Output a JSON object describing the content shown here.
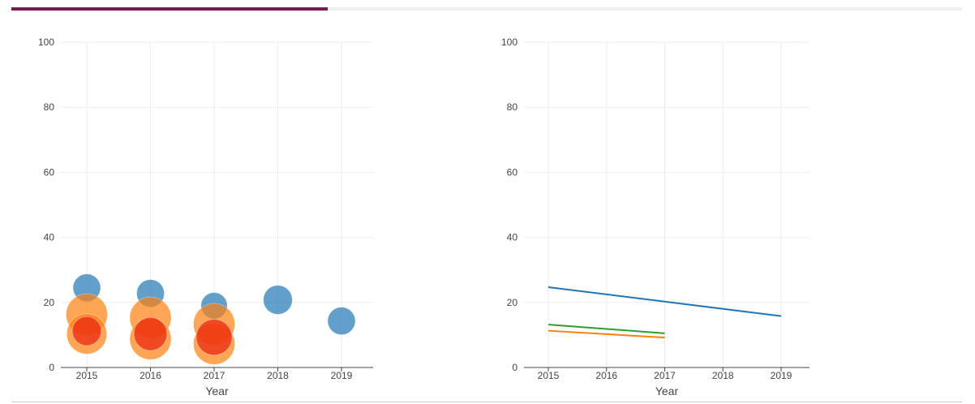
{
  "progress": {
    "fraction": 0.333,
    "color": "#7a1c52"
  },
  "chart_data": [
    {
      "type": "scatter",
      "xlabel": "Year",
      "ylabel": "",
      "ylim": [
        0,
        100
      ],
      "yticks": [
        0,
        20,
        40,
        60,
        80,
        100
      ],
      "x": [
        2015,
        2016,
        2017,
        2018,
        2019
      ],
      "xticks": [
        "2015",
        "2016",
        "2017",
        "2018",
        "2019"
      ],
      "grid": true,
      "series": [
        {
          "color": "#1f77b4",
          "points": [
            {
              "x": 2015,
              "y": 24.5,
              "size": 2.0
            },
            {
              "x": 2016,
              "y": 22.8,
              "size": 2.0
            },
            {
              "x": 2017,
              "y": 19.0,
              "size": 1.9
            },
            {
              "x": 2018,
              "y": 20.8,
              "size": 2.1
            },
            {
              "x": 2019,
              "y": 14.3,
              "size": 2.0
            }
          ]
        },
        {
          "color": "#ff7f0e",
          "points": [
            {
              "x": 2015,
              "y": 16.3,
              "size": 3.0
            },
            {
              "x": 2015,
              "y": 10.3,
              "size": 2.9
            },
            {
              "x": 2016,
              "y": 15.3,
              "size": 3.0
            },
            {
              "x": 2016,
              "y": 8.8,
              "size": 3.0
            },
            {
              "x": 2017,
              "y": 13.3,
              "size": 3.0
            },
            {
              "x": 2017,
              "y": 7.3,
              "size": 3.0
            }
          ]
        },
        {
          "color": "#e8220f",
          "points": [
            {
              "x": 2015,
              "y": 11.2,
              "size": 2.1
            },
            {
              "x": 2016,
              "y": 10.3,
              "size": 2.4
            },
            {
              "x": 2017,
              "y": 9.3,
              "size": 2.6
            }
          ]
        }
      ]
    },
    {
      "type": "line",
      "xlabel": "Year",
      "ylabel": "",
      "ylim": [
        0,
        100
      ],
      "yticks": [
        0,
        20,
        40,
        60,
        80,
        100
      ],
      "x": [
        2015,
        2016,
        2017,
        2018,
        2019
      ],
      "xticks": [
        "2015",
        "2016",
        "2017",
        "2018",
        "2019"
      ],
      "grid": true,
      "series": [
        {
          "color": "#1f77b4",
          "points": [
            {
              "x": 2015,
              "y": 24.7
            },
            {
              "x": 2019,
              "y": 15.8
            }
          ]
        },
        {
          "color": "#2ca02c",
          "points": [
            {
              "x": 2015,
              "y": 13.2
            },
            {
              "x": 2017,
              "y": 10.5
            }
          ]
        },
        {
          "color": "#ff7f0e",
          "points": [
            {
              "x": 2015,
              "y": 11.3
            },
            {
              "x": 2017,
              "y": 9.2
            }
          ]
        }
      ]
    }
  ]
}
